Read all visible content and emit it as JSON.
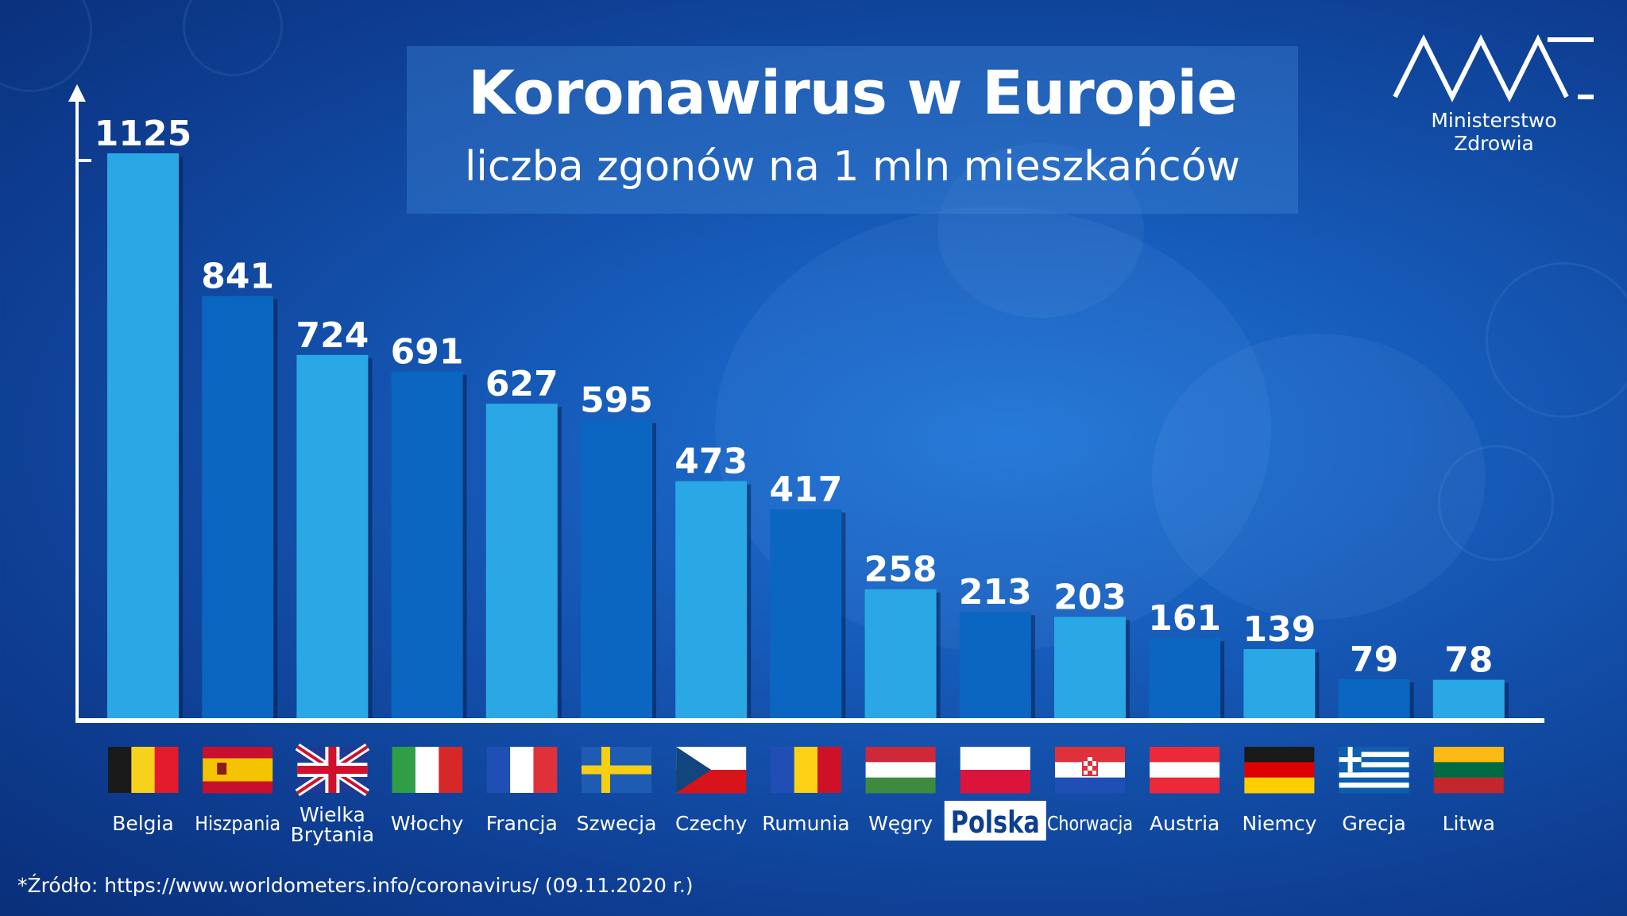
{
  "header": {
    "title": "Koronawirus w Europie",
    "subtitle": "liczba zgonów na 1 mln mieszkańców"
  },
  "logo": {
    "name": "Ministerstwo Zdrowia",
    "icon": "mz-logo-icon"
  },
  "source": "*Źródło: https://www.worldometers.info/coronavirus/ (09.11.2020 r.)",
  "colors": {
    "bar_light": "#2aa8e6",
    "bar_dark": "#0a66c0",
    "axis": "#ffffff",
    "highlight_bg": "#ffffff",
    "highlight_text": "#0d3f8f"
  },
  "chart_data": {
    "type": "bar",
    "title": "Koronawirus w Europie",
    "subtitle": "liczba zgonów na 1 mln mieszkańców",
    "categories": [
      "Belgia",
      "Hiszpania",
      "Wielka Brytania",
      "Włochy",
      "Francja",
      "Szwecja",
      "Czechy",
      "Rumunia",
      "Węgry",
      "Polska",
      "Chorwacja",
      "Austria",
      "Niemcy",
      "Grecja",
      "Litwa"
    ],
    "values": [
      1125,
      841,
      724,
      691,
      627,
      595,
      473,
      417,
      258,
      213,
      203,
      161,
      139,
      79,
      78
    ],
    "data_labels": [
      "1125",
      "841",
      "724",
      "691",
      "627",
      "595",
      "473",
      "417",
      "258",
      "213",
      "203",
      "161",
      "139",
      "79",
      "78"
    ],
    "highlight": "Polska",
    "flags": [
      "belgium-flag-icon",
      "spain-flag-icon",
      "uk-flag-icon",
      "italy-flag-icon",
      "france-flag-icon",
      "sweden-flag-icon",
      "czechia-flag-icon",
      "romania-flag-icon",
      "hungary-flag-icon",
      "poland-flag-icon",
      "croatia-flag-icon",
      "austria-flag-icon",
      "germany-flag-icon",
      "greece-flag-icon",
      "lithuania-flag-icon"
    ],
    "ylim": [
      0,
      1125
    ],
    "grid": false,
    "xlabel": "",
    "ylabel": ""
  }
}
